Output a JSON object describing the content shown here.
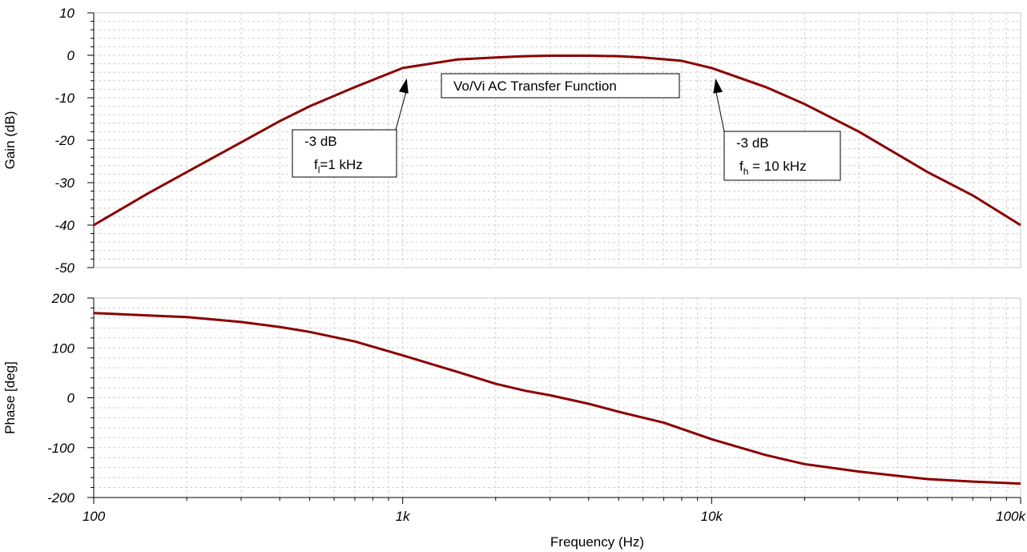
{
  "chart_data": [
    {
      "type": "line",
      "name": "gain",
      "title": "Vo/Vi AC Transfer Function",
      "ylabel": "Gain (dB)",
      "xlabel": "",
      "xscale": "log",
      "xlim": [
        100,
        100000
      ],
      "ylim": [
        -50,
        10
      ],
      "yticks": [
        10,
        0,
        -10,
        -20,
        -30,
        -40,
        -50
      ],
      "ytick_labels": [
        "10",
        "0",
        "-10",
        "-20",
        "-30",
        "-40",
        "-50"
      ],
      "grid": true,
      "series": [
        {
          "name": "Gain",
          "color": "#8b0000",
          "x": [
            100,
            150,
            200,
            300,
            400,
            500,
            700,
            1000,
            1500,
            2000,
            2500,
            3000,
            4000,
            5000,
            6000,
            8000,
            10000,
            15000,
            20000,
            30000,
            50000,
            70000,
            100000
          ],
          "y": [
            -40,
            -32.5,
            -27.5,
            -20.5,
            -15.5,
            -12,
            -7.5,
            -3,
            -1,
            -0.5,
            -0.2,
            -0.1,
            -0.1,
            -0.2,
            -0.5,
            -1.3,
            -3,
            -7.5,
            -11.5,
            -18,
            -27.5,
            -33,
            -40
          ]
        }
      ],
      "annotations": [
        {
          "line1": "-3 dB",
          "line2_main": "f",
          "line2_sub": "l",
          "line2_rest": "=1 kHz",
          "x": 1000,
          "y": -3
        },
        {
          "line1": "-3 dB",
          "line2_main": "f",
          "line2_sub": "h",
          "line2_rest": " = 10 kHz",
          "x": 10000,
          "y": -3
        }
      ]
    },
    {
      "type": "line",
      "name": "phase",
      "title": "",
      "ylabel": "Phase [deg]",
      "xlabel": "Frequency (Hz)",
      "xscale": "log",
      "xlim": [
        100,
        100000
      ],
      "ylim": [
        -200,
        200
      ],
      "yticks": [
        200,
        100,
        0,
        -100,
        -200
      ],
      "ytick_labels": [
        "200",
        "100",
        "0",
        "-100",
        "-200"
      ],
      "xticks": [
        100,
        1000,
        10000,
        100000
      ],
      "xtick_labels": [
        "100",
        "1k",
        "10k",
        "100k"
      ],
      "grid": true,
      "series": [
        {
          "name": "Phase",
          "color": "#8b0000",
          "x": [
            100,
            150,
            200,
            300,
            400,
            500,
            700,
            1000,
            1500,
            2000,
            2500,
            3000,
            4000,
            5000,
            7000,
            10000,
            15000,
            20000,
            30000,
            50000,
            70000,
            100000
          ],
          "y": [
            170,
            165,
            162,
            152,
            142,
            132,
            113,
            85,
            52,
            28,
            14,
            5,
            -12,
            -28,
            -50,
            -83,
            -115,
            -133,
            -148,
            -163,
            -168,
            -172
          ]
        }
      ]
    }
  ]
}
